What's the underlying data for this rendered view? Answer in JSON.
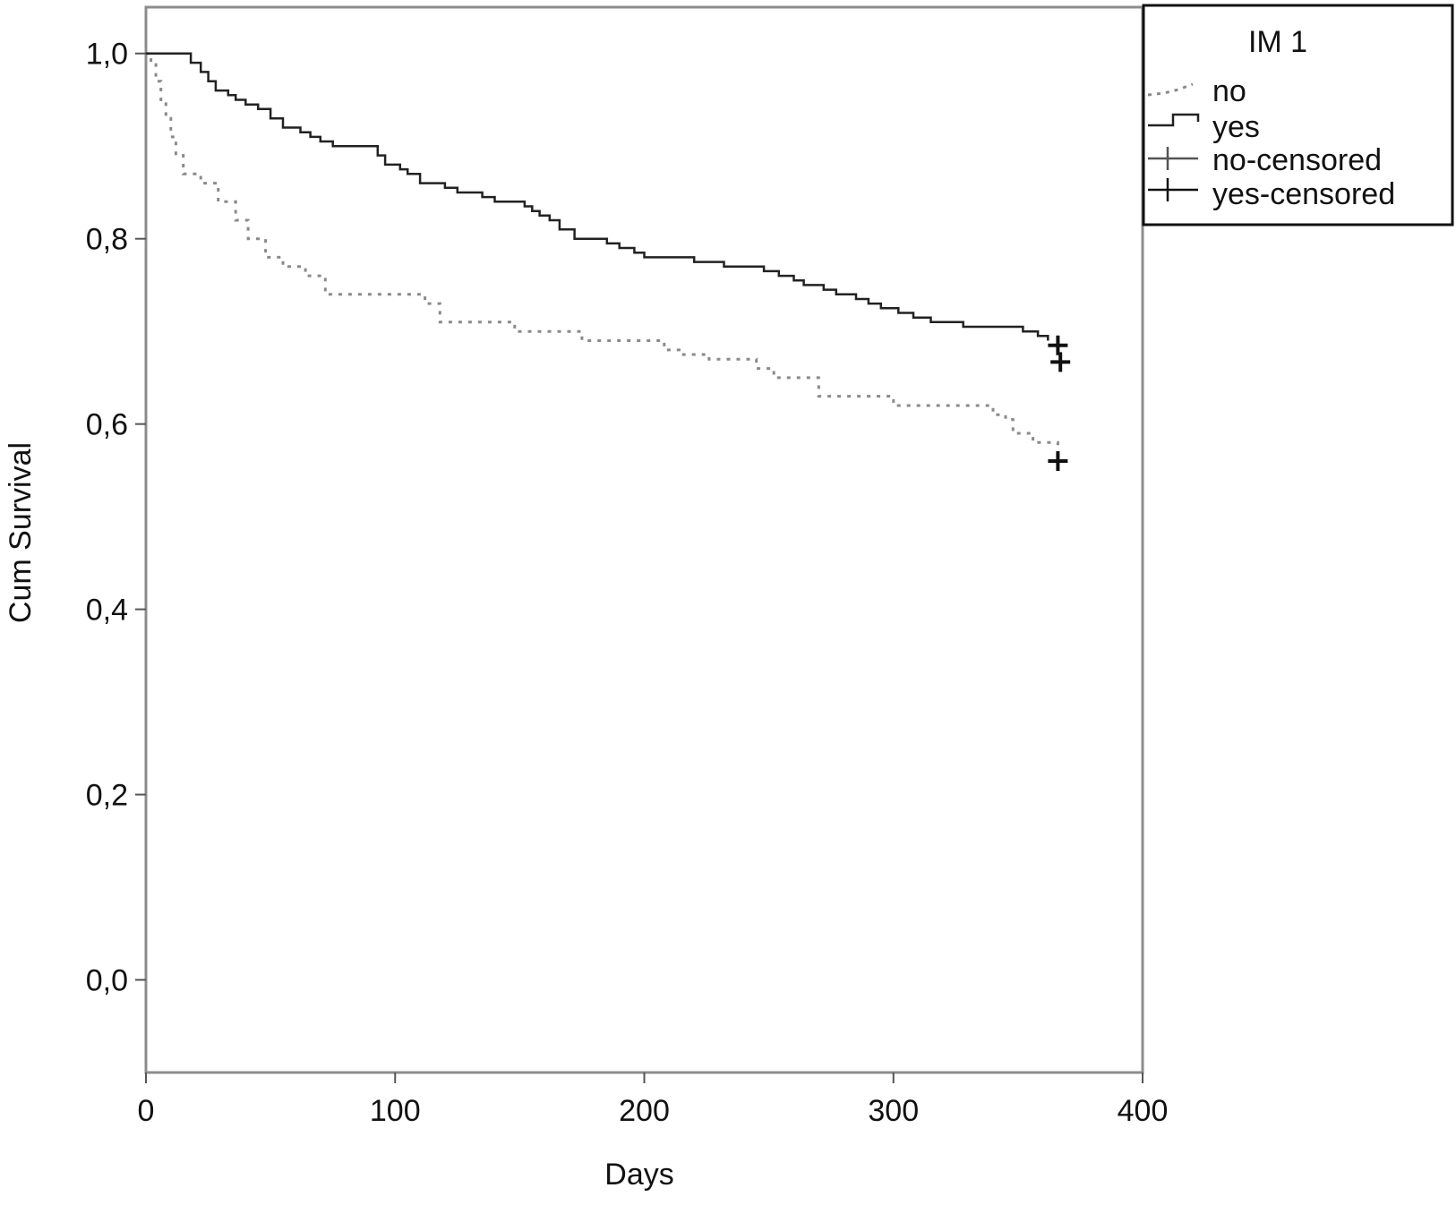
{
  "chart_data": {
    "type": "line",
    "step": true,
    "xlabel": "Days",
    "ylabel": "Cum Survival",
    "xlim": [
      0,
      400
    ],
    "ylim": [
      -0.1,
      1.05
    ],
    "x_ticks": [
      0,
      100,
      200,
      300,
      400
    ],
    "x_tick_labels": [
      "0",
      "100",
      "200",
      "300",
      "400"
    ],
    "y_ticks": [
      0.0,
      0.2,
      0.4,
      0.6,
      0.8,
      1.0
    ],
    "y_tick_labels": [
      "0,0",
      "0,2",
      "0,4",
      "0,6",
      "0,8",
      "1,0"
    ],
    "grid": false,
    "legend": {
      "title": "IM 1",
      "position": "top-right, outside plot",
      "entries": [
        {
          "label": "no",
          "style": "dotted-line"
        },
        {
          "label": "yes",
          "style": "solid-step"
        },
        {
          "label": "no-censored",
          "style": "plus-marker"
        },
        {
          "label": "yes-censored",
          "style": "plus-marker"
        }
      ]
    },
    "series": [
      {
        "name": "no",
        "style": "dotted",
        "color": "#8a8a8a",
        "points": [
          [
            0,
            1.0
          ],
          [
            2,
            0.99
          ],
          [
            4,
            0.97
          ],
          [
            6,
            0.95
          ],
          [
            8,
            0.93
          ],
          [
            10,
            0.91
          ],
          [
            12,
            0.89
          ],
          [
            15,
            0.87
          ],
          [
            22,
            0.86
          ],
          [
            29,
            0.84
          ],
          [
            36,
            0.82
          ],
          [
            41,
            0.8
          ],
          [
            48,
            0.78
          ],
          [
            55,
            0.77
          ],
          [
            64,
            0.76
          ],
          [
            72,
            0.74
          ],
          [
            100,
            0.74
          ],
          [
            112,
            0.73
          ],
          [
            118,
            0.71
          ],
          [
            135,
            0.71
          ],
          [
            148,
            0.7
          ],
          [
            175,
            0.69
          ],
          [
            200,
            0.69
          ],
          [
            208,
            0.68
          ],
          [
            214,
            0.675
          ],
          [
            226,
            0.67
          ],
          [
            245,
            0.66
          ],
          [
            252,
            0.65
          ],
          [
            265,
            0.65
          ],
          [
            270,
            0.63
          ],
          [
            300,
            0.62
          ],
          [
            322,
            0.62
          ],
          [
            340,
            0.61
          ],
          [
            345,
            0.605
          ],
          [
            348,
            0.59
          ],
          [
            356,
            0.58
          ],
          [
            366,
            0.57
          ]
        ],
        "censored": [
          [
            366,
            0.56
          ]
        ]
      },
      {
        "name": "yes",
        "style": "solid",
        "color": "#222222",
        "points": [
          [
            0,
            1.0
          ],
          [
            12,
            1.0
          ],
          [
            18,
            0.99
          ],
          [
            22,
            0.98
          ],
          [
            25,
            0.97
          ],
          [
            28,
            0.96
          ],
          [
            33,
            0.955
          ],
          [
            36,
            0.95
          ],
          [
            40,
            0.945
          ],
          [
            45,
            0.94
          ],
          [
            50,
            0.93
          ],
          [
            55,
            0.92
          ],
          [
            62,
            0.915
          ],
          [
            66,
            0.91
          ],
          [
            70,
            0.905
          ],
          [
            75,
            0.9
          ],
          [
            90,
            0.9
          ],
          [
            93,
            0.89
          ],
          [
            96,
            0.88
          ],
          [
            102,
            0.875
          ],
          [
            105,
            0.87
          ],
          [
            110,
            0.86
          ],
          [
            120,
            0.855
          ],
          [
            125,
            0.85
          ],
          [
            135,
            0.845
          ],
          [
            140,
            0.84
          ],
          [
            152,
            0.835
          ],
          [
            155,
            0.83
          ],
          [
            158,
            0.825
          ],
          [
            162,
            0.82
          ],
          [
            166,
            0.81
          ],
          [
            172,
            0.8
          ],
          [
            185,
            0.795
          ],
          [
            190,
            0.79
          ],
          [
            196,
            0.785
          ],
          [
            200,
            0.78
          ],
          [
            215,
            0.78
          ],
          [
            220,
            0.775
          ],
          [
            232,
            0.77
          ],
          [
            248,
            0.765
          ],
          [
            254,
            0.76
          ],
          [
            260,
            0.755
          ],
          [
            264,
            0.75
          ],
          [
            272,
            0.745
          ],
          [
            277,
            0.74
          ],
          [
            285,
            0.735
          ],
          [
            290,
            0.73
          ],
          [
            295,
            0.725
          ],
          [
            302,
            0.72
          ],
          [
            308,
            0.715
          ],
          [
            315,
            0.71
          ],
          [
            328,
            0.705
          ],
          [
            352,
            0.7
          ],
          [
            358,
            0.695
          ],
          [
            362,
            0.69
          ]
        ],
        "censored": [
          [
            366,
            0.685
          ],
          [
            367,
            0.667
          ]
        ]
      }
    ]
  }
}
